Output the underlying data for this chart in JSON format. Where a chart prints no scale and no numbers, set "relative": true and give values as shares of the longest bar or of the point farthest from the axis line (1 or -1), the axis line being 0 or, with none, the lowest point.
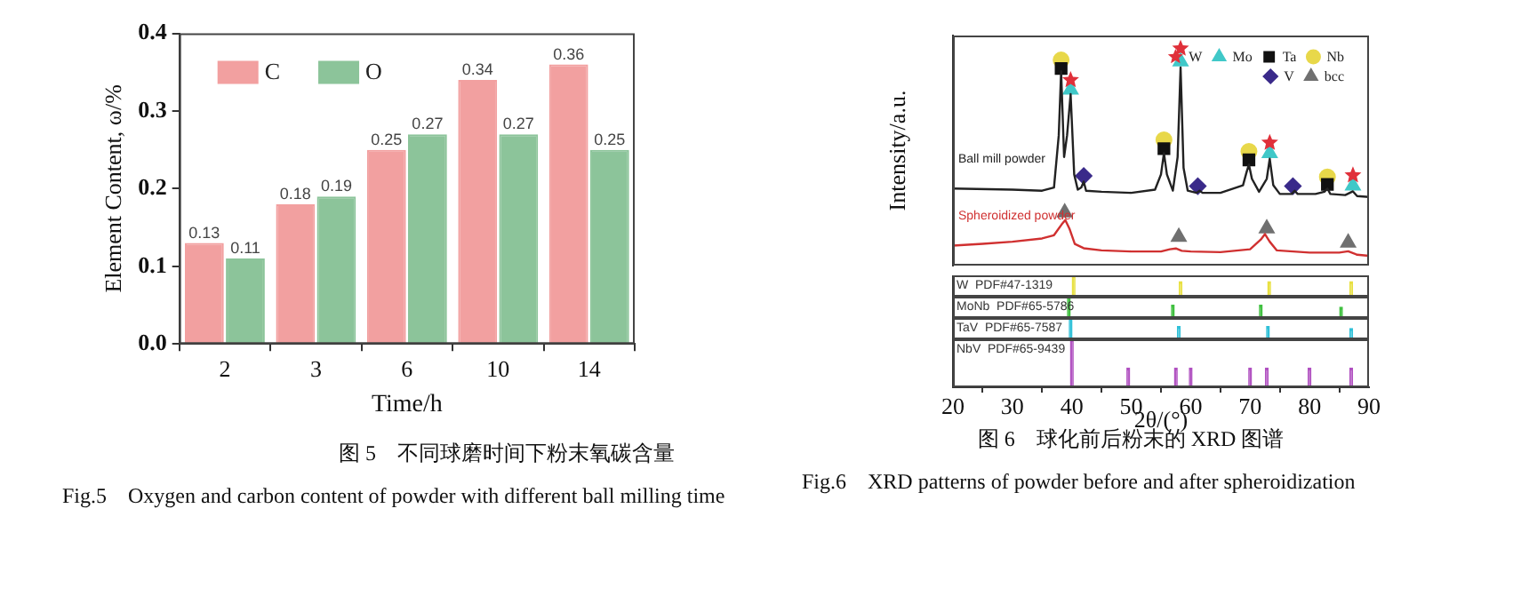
{
  "chart_data": [
    {
      "type": "bar",
      "xlabel": "Time/h",
      "ylabel": "Element Content, ω/%",
      "categories": [
        "2",
        "3",
        "6",
        "10",
        "14"
      ],
      "series": [
        {
          "name": "C",
          "color": "#f2a0a0",
          "values": [
            0.13,
            0.18,
            0.25,
            0.34,
            0.36
          ]
        },
        {
          "name": "O",
          "color": "#8cc49a",
          "values": [
            0.11,
            0.19,
            0.27,
            0.27,
            0.25
          ]
        }
      ],
      "ylim": [
        0,
        0.4
      ],
      "yticks": [
        {
          "value": 0,
          "label": "0.0"
        },
        0.1,
        0.2,
        0.3,
        0.4
      ],
      "data_labels": true,
      "legend": "top left",
      "annotations": [
        "图 5　不同球磨时间下粉末氧碳含量",
        "Fig.5　Oxygen and carbon content of powder with different ball milling time"
      ]
    },
    {
      "type": "line",
      "ylabel": "Intensity/a.u.",
      "relative": true,
      "xlim": [
        20,
        90
      ],
      "tick_labels": false,
      "legend": "top right",
      "series": [
        {
          "name": "Ball mill powder",
          "color": "#222222",
          "x": [
            20,
            30,
            35,
            37,
            37.8,
            38.2,
            38.7,
            39.2,
            39.8,
            40.4,
            41,
            41.6,
            42,
            42.4,
            45,
            50,
            54,
            55,
            55.5,
            56,
            57,
            57.8,
            58.3,
            58.8,
            59.5,
            61,
            61.5,
            62,
            65,
            68.8,
            69.4,
            69.8,
            70.3,
            71.5,
            72.8,
            73.3,
            73.9,
            75,
            77,
            77.5,
            78,
            81,
            82.5,
            83,
            83.5,
            86,
            87.3,
            88,
            90
          ],
          "values": [
            0.355,
            0.35,
            0.345,
            0.36,
            0.6,
            0.895,
            0.5,
            0.6,
            0.79,
            0.42,
            0.35,
            0.36,
            0.387,
            0.345,
            0.34,
            0.335,
            0.35,
            0.42,
            0.518,
            0.42,
            0.345,
            0.5,
            0.913,
            0.45,
            0.345,
            0.335,
            0.345,
            0.335,
            0.335,
            0.37,
            0.43,
            0.466,
            0.4,
            0.34,
            0.4,
            0.492,
            0.37,
            0.33,
            0.33,
            0.345,
            0.33,
            0.33,
            0.34,
            0.355,
            0.33,
            0.325,
            0.342,
            0.32,
            0.316
          ]
        },
        {
          "name": "Spheroidized powder",
          "color": "#d03030",
          "x": [
            20,
            25,
            30,
            35,
            37,
            38.3,
            38.9,
            39.6,
            40.5,
            42,
            45,
            50,
            55,
            56.5,
            57.5,
            58.5,
            60,
            65,
            70,
            71.8,
            72.5,
            73.3,
            74.5,
            80,
            85,
            86.5,
            88,
            90
          ],
          "values": [
            0.092,
            0.1,
            0.11,
            0.125,
            0.14,
            0.19,
            0.21,
            0.17,
            0.1,
            0.08,
            0.07,
            0.065,
            0.065,
            0.075,
            0.079,
            0.068,
            0.065,
            0.062,
            0.075,
            0.12,
            0.145,
            0.11,
            0.07,
            0.06,
            0.06,
            0.066,
            0.05,
            0.045
          ]
        },
        {
          "name": "W",
          "type": "scatter",
          "marker": "star",
          "color": "#e0303a",
          "x": [
            39.8,
            58.3,
            73.3,
            87.3
          ],
          "values": [
            0.855,
            1.0,
            0.566,
            0.416
          ]
        },
        {
          "name": "Mo",
          "type": "scatter",
          "marker": "triangle",
          "color": "#40c8c8",
          "x": [
            39.8,
            58.3,
            73.3,
            87.3
          ],
          "values": [
            0.81,
            0.94,
            0.518,
            0.368
          ]
        },
        {
          "name": "Ta",
          "type": "scatter",
          "marker": "square",
          "color": "#111111",
          "x": [
            38.2,
            55.5,
            69.8,
            83
          ],
          "values": [
            0.908,
            0.539,
            0.487,
            0.374
          ]
        },
        {
          "name": "Nb",
          "type": "scatter",
          "marker": "circle",
          "color": "#e8d84a",
          "x": [
            38.2,
            55.5,
            69.8,
            83
          ],
          "values": [
            0.947,
            0.579,
            0.526,
            0.408
          ]
        },
        {
          "name": "V",
          "type": "scatter",
          "marker": "diamond",
          "color": "#3a2a8a",
          "x": [
            42,
            61.2,
            77.2
          ],
          "values": [
            0.413,
            0.366,
            0.366
          ]
        },
        {
          "name": "bcc",
          "type": "scatter",
          "marker": "triangle",
          "color": "#707070",
          "x": [
            38.8,
            58,
            72.8,
            86.5
          ],
          "values": [
            0.245,
            0.132,
            0.171,
            0.105
          ]
        }
      ],
      "annotations": [
        "图 6　球化前后粉末的 XRD 图谱",
        "Fig.6　XRD patterns of powder before and after spheroidization"
      ]
    },
    {
      "type": "bar",
      "title": "W  PDF#47-1319",
      "relative": true,
      "xlim": [
        20,
        90
      ],
      "tick_labels": false,
      "x": [
        40.3,
        58.3,
        73.2,
        87
      ],
      "values": [
        1,
        0.7,
        0.7,
        0.7
      ],
      "color": "#e8e040"
    },
    {
      "type": "bar",
      "title": "MoNb  PDF#65-5786",
      "relative": true,
      "xlim": [
        20,
        90
      ],
      "tick_labels": false,
      "x": [
        39.5,
        57,
        71.8,
        85.3
      ],
      "values": [
        1,
        0.6,
        0.6,
        0.5
      ],
      "color": "#40c040"
    },
    {
      "type": "bar",
      "title": "TaV  PDF#65-7587",
      "relative": true,
      "xlim": [
        20,
        90
      ],
      "tick_labels": false,
      "x": [
        39.8,
        58,
        73,
        87
      ],
      "values": [
        1,
        0.6,
        0.6,
        0.5
      ],
      "color": "#30c0d8"
    },
    {
      "type": "bar",
      "title": "NbV  PDF#65-9439",
      "relative": true,
      "xlim": [
        20,
        90
      ],
      "xticks": [
        20,
        30,
        40,
        50,
        60,
        70,
        80,
        90
      ],
      "xlabel": "2θ/(°)",
      "tick_labels": "x",
      "x": [
        40,
        49.5,
        57.5,
        60,
        70,
        72.8,
        80,
        87
      ],
      "values": [
        1,
        0.4,
        0.4,
        0.4,
        0.4,
        0.4,
        0.4,
        0.4
      ],
      "color": "#b050c0"
    }
  ]
}
